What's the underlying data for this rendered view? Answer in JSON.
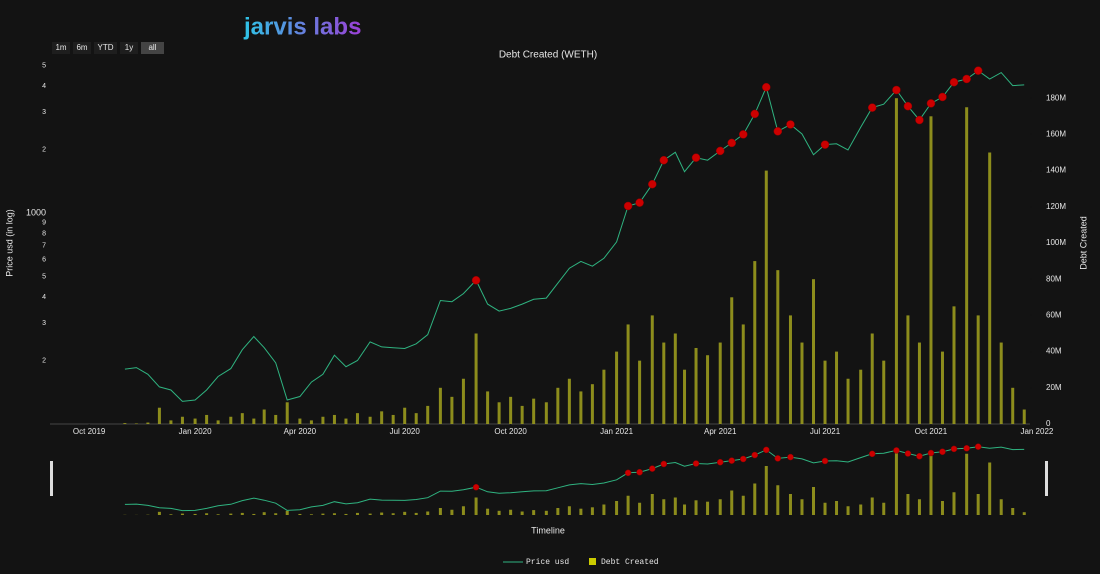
{
  "logo": "jarvis labs",
  "range_buttons": [
    "1m",
    "6m",
    "YTD",
    "1y",
    "all"
  ],
  "chart_data": {
    "type": "line",
    "title": "Debt Created (WETH)",
    "x_label": "Timeline",
    "y_label": "Price usd (in log)",
    "y2_label": "Debt Created",
    "yscale": "log",
    "xlim": [
      "2019-08-28",
      "2021-12-26"
    ],
    "xticks": [
      {
        "value": "2019-10-01",
        "label": "Oct 2019"
      },
      {
        "value": "2020-01-01",
        "label": "Jan 2020"
      },
      {
        "value": "2020-04-01",
        "label": "Apr 2020"
      },
      {
        "value": "2020-07-01",
        "label": "Jul 2020"
      },
      {
        "value": "2020-10-01",
        "label": "Oct 2020"
      },
      {
        "value": "2021-01-01",
        "label": "Jan 2021"
      },
      {
        "value": "2021-04-01",
        "label": "Apr 2021"
      },
      {
        "value": "2021-07-01",
        "label": "Jul 2021"
      },
      {
        "value": "2021-10-01",
        "label": "Oct 2021"
      },
      {
        "value": "2022-01-01",
        "label": "Jan 2022"
      }
    ],
    "ylim": [
      100,
      5200
    ],
    "yticks": [
      {
        "value": 200,
        "label": "2"
      },
      {
        "value": 300,
        "label": "3"
      },
      {
        "value": 400,
        "label": "4"
      },
      {
        "value": 500,
        "label": "5"
      },
      {
        "value": 600,
        "label": "6"
      },
      {
        "value": 700,
        "label": "7"
      },
      {
        "value": 800,
        "label": "8"
      },
      {
        "value": 900,
        "label": "9"
      },
      1000,
      {
        "value": 2000,
        "label": "2"
      },
      {
        "value": 3000,
        "label": "3"
      },
      {
        "value": 4000,
        "label": "4"
      },
      {
        "value": 5000,
        "label": "5"
      }
    ],
    "y2lim": [
      0,
      200000000
    ],
    "y2ticks": [
      0,
      {
        "value": 20000000,
        "label": "20M"
      },
      {
        "value": 40000000,
        "label": "40M"
      },
      {
        "value": 60000000,
        "label": "60M"
      },
      {
        "value": 80000000,
        "label": "80M"
      },
      {
        "value": 100000000,
        "label": "100M"
      },
      {
        "value": 120000000,
        "label": "120M"
      },
      {
        "value": 140000000,
        "label": "140M"
      },
      {
        "value": 160000000,
        "label": "160M"
      },
      {
        "value": 180000000,
        "label": "180M"
      }
    ],
    "x": [
      "2019-11-01",
      "2019-11-11",
      "2019-11-21",
      "2019-12-01",
      "2019-12-11",
      "2019-12-21",
      "2020-01-01",
      "2020-01-11",
      "2020-01-21",
      "2020-02-01",
      "2020-02-11",
      "2020-02-21",
      "2020-03-01",
      "2020-03-11",
      "2020-03-21",
      "2020-04-01",
      "2020-04-11",
      "2020-04-21",
      "2020-05-01",
      "2020-05-11",
      "2020-05-21",
      "2020-06-01",
      "2020-06-11",
      "2020-06-21",
      "2020-07-01",
      "2020-07-11",
      "2020-07-21",
      "2020-08-01",
      "2020-08-11",
      "2020-08-21",
      "2020-09-01",
      "2020-09-11",
      "2020-09-21",
      "2020-10-01",
      "2020-10-11",
      "2020-10-21",
      "2020-11-01",
      "2020-11-11",
      "2020-11-21",
      "2020-12-01",
      "2020-12-11",
      "2020-12-21",
      "2021-01-01",
      "2021-01-11",
      "2021-01-21",
      "2021-02-01",
      "2021-02-11",
      "2021-02-21",
      "2021-03-01",
      "2021-03-11",
      "2021-03-21",
      "2021-04-01",
      "2021-04-11",
      "2021-04-21",
      "2021-05-01",
      "2021-05-11",
      "2021-05-21",
      "2021-06-01",
      "2021-06-11",
      "2021-06-21",
      "2021-07-01",
      "2021-07-11",
      "2021-07-21",
      "2021-08-01",
      "2021-08-11",
      "2021-08-21",
      "2021-09-01",
      "2021-09-11",
      "2021-09-21",
      "2021-10-01",
      "2021-10-11",
      "2021-10-21",
      "2021-11-01",
      "2021-11-11",
      "2021-11-21",
      "2021-12-01",
      "2021-12-11",
      "2021-12-21"
    ],
    "series": [
      {
        "name": "Price usd",
        "type": "line",
        "color": "#2fb380",
        "values": [
          182,
          185,
          172,
          150,
          145,
          128,
          130,
          145,
          168,
          183,
          225,
          260,
          230,
          195,
          130,
          135,
          158,
          172,
          212,
          187,
          200,
          245,
          232,
          230,
          228,
          240,
          265,
          385,
          380,
          415,
          480,
          370,
          343,
          353,
          370,
          390,
          395,
          465,
          548,
          590,
          560,
          610,
          730,
          1080,
          1120,
          1370,
          1780,
          1940,
          1570,
          1830,
          1780,
          1970,
          2150,
          2360,
          2950,
          3950,
          2440,
          2630,
          2370,
          1890,
          2110,
          2130,
          1990,
          2550,
          3160,
          3280,
          3830,
          3210,
          2760,
          3310,
          3550,
          4170,
          4320,
          4730,
          4320,
          4630,
          4020,
          4050
        ]
      },
      {
        "name": "Debt Created",
        "type": "bar",
        "axis": "y2",
        "color": "#a3a31f",
        "legend_color": "#cccc00",
        "values": [
          500000,
          300000,
          800000,
          9000000,
          2000000,
          4000000,
          3000000,
          5000000,
          2000000,
          4000000,
          6000000,
          3000000,
          8000000,
          5000000,
          12000000,
          3000000,
          2000000,
          4000000,
          5000000,
          3000000,
          6000000,
          4000000,
          7000000,
          5000000,
          9000000,
          6000000,
          10000000,
          20000000,
          15000000,
          25000000,
          50000000,
          18000000,
          12000000,
          15000000,
          10000000,
          14000000,
          12000000,
          20000000,
          25000000,
          18000000,
          22000000,
          30000000,
          40000000,
          55000000,
          35000000,
          60000000,
          45000000,
          50000000,
          30000000,
          42000000,
          38000000,
          45000000,
          70000000,
          55000000,
          90000000,
          140000000,
          85000000,
          60000000,
          45000000,
          80000000,
          35000000,
          40000000,
          25000000,
          30000000,
          50000000,
          35000000,
          180000000,
          60000000,
          45000000,
          170000000,
          40000000,
          65000000,
          175000000,
          60000000,
          150000000,
          45000000,
          20000000,
          8000000
        ]
      }
    ],
    "markers": {
      "color": "#cc0000",
      "x": [
        "2020-09-01",
        "2021-01-11",
        "2021-01-21",
        "2021-02-01",
        "2021-02-11",
        "2021-03-11",
        "2021-04-01",
        "2021-04-11",
        "2021-04-21",
        "2021-05-01",
        "2021-05-11",
        "2021-05-21",
        "2021-06-01",
        "2021-07-01",
        "2021-08-11",
        "2021-09-01",
        "2021-09-11",
        "2021-09-21",
        "2021-10-01",
        "2021-10-11",
        "2021-10-21",
        "2021-11-01",
        "2021-11-11"
      ],
      "values": [
        480,
        1080,
        1120,
        1370,
        1780,
        1830,
        1970,
        2150,
        2360,
        2950,
        3950,
        2440,
        2630,
        2110,
        3160,
        3830,
        3210,
        2760,
        3310,
        3550,
        4170,
        4320,
        4730
      ]
    },
    "legend": "bottom"
  }
}
